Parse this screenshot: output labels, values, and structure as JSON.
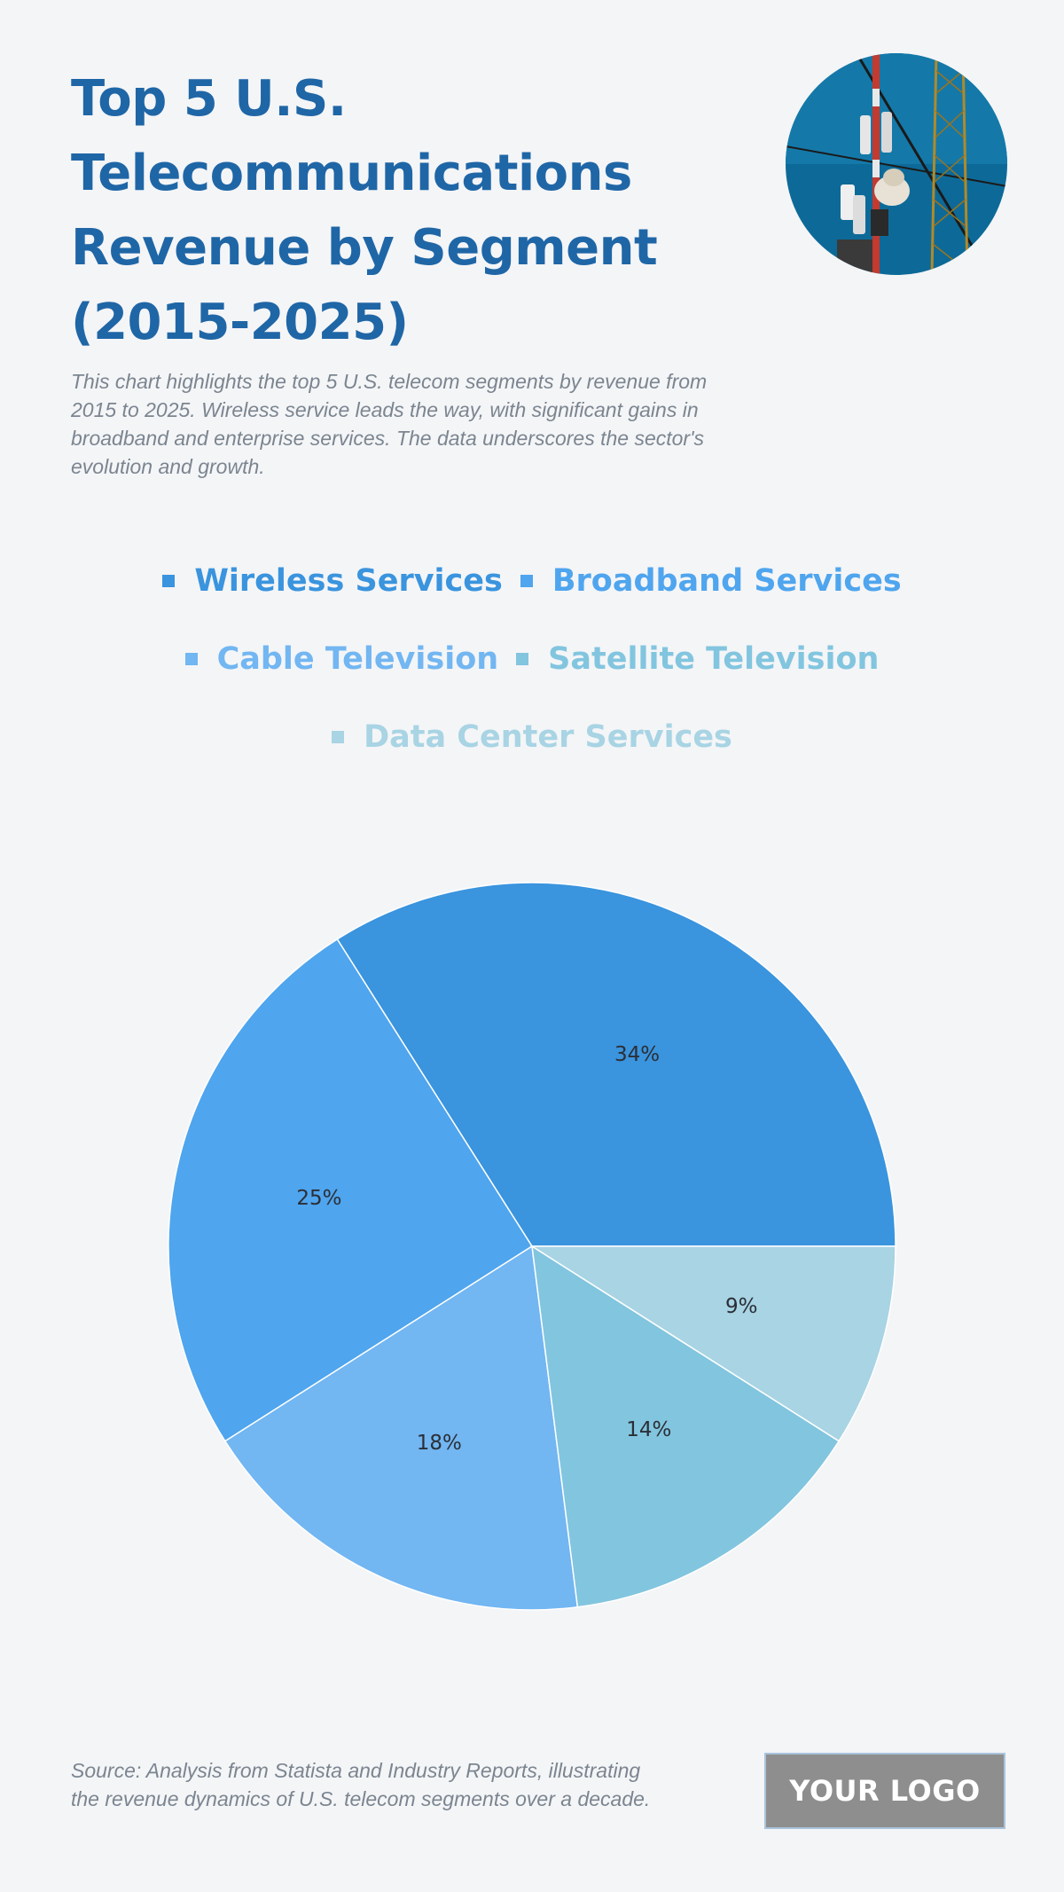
{
  "header": {
    "title": "Top 5 U.S. Telecommunications Revenue by Segment (2015-2025)",
    "subtitle": "This chart highlights the top 5 U.S. telecom segments by revenue from 2015 to 2025. Wireless service leads the way, with significant gains in broadband and enterprise services. The data underscores the sector's evolution and growth."
  },
  "colors": {
    "background": "#f4f5f7",
    "title": "#1f66a6",
    "slices": [
      "#3a94de",
      "#4fa5ee",
      "#72b6f2",
      "#82c5df",
      "#a8d4e4"
    ]
  },
  "chart_data": {
    "type": "pie",
    "title": "Top 5 U.S. Telecommunications Revenue by Segment (2015-2025)",
    "categories": [
      "Wireless Services",
      "Broadband Services",
      "Cable Television",
      "Satellite Television",
      "Data Center Services"
    ],
    "values": [
      34,
      25,
      18,
      14,
      9
    ],
    "labels": [
      "34%",
      "25%",
      "18%",
      "14%",
      "9%"
    ],
    "unit": "%",
    "legend_position": "top"
  },
  "footer": {
    "source": "Source: Analysis from Statista and Industry Reports, illustrating the revenue dynamics of U.S. telecom segments over a decade.",
    "logo_text": "YOUR LOGO"
  },
  "icons": {
    "header_photo": "telecom-tower-photo-icon"
  }
}
